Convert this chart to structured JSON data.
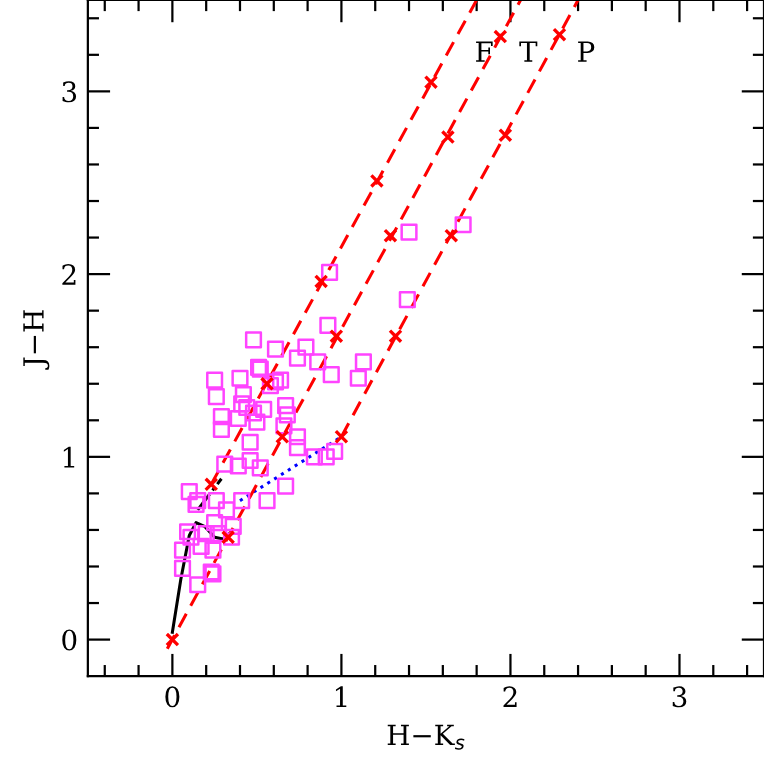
{
  "chart_data": {
    "type": "scatter",
    "xlabel": "H−K$_{s}$",
    "ylabel": "J−H",
    "xlim": [
      -0.5,
      3.5
    ],
    "ylim": [
      -0.2,
      3.5
    ],
    "xticks": [
      {
        "value": -0.4,
        "label": null
      },
      {
        "value": -0.2,
        "label": null
      },
      0,
      {
        "value": 0.2,
        "label": null
      },
      {
        "value": 0.4,
        "label": null
      },
      {
        "value": 0.6,
        "label": null
      },
      {
        "value": 0.8,
        "label": null
      },
      1,
      {
        "value": 1.2,
        "label": null
      },
      {
        "value": 1.4,
        "label": null
      },
      {
        "value": 1.6,
        "label": null
      },
      {
        "value": 1.8,
        "label": null
      },
      2,
      {
        "value": 2.2,
        "label": null
      },
      {
        "value": 2.4,
        "label": null
      },
      {
        "value": 2.6,
        "label": null
      },
      {
        "value": 2.8,
        "label": null
      },
      3,
      {
        "value": 3.2,
        "label": null
      },
      {
        "value": 3.4,
        "label": null
      }
    ],
    "yticks": [
      0,
      {
        "value": 0.2,
        "label": null
      },
      {
        "value": 0.4,
        "label": null
      },
      {
        "value": 0.6,
        "label": null
      },
      {
        "value": 0.8,
        "label": null
      },
      1,
      {
        "value": 1.2,
        "label": null
      },
      {
        "value": 1.4,
        "label": null
      },
      {
        "value": 1.6,
        "label": null
      },
      {
        "value": 1.8,
        "label": null
      },
      2,
      {
        "value": 2.2,
        "label": null
      },
      {
        "value": 2.4,
        "label": null
      },
      {
        "value": 2.6,
        "label": null
      },
      {
        "value": 2.8,
        "label": null
      },
      3,
      {
        "value": 3.2,
        "label": null
      },
      {
        "value": 3.4,
        "label": null
      }
    ],
    "grid": false,
    "legend": false,
    "series": [
      {
        "marker": "square",
        "color": "#ff44ff",
        "x": [
          0.1,
          0.14,
          0.15,
          0.26,
          0.32,
          0.41,
          0.56,
          0.67,
          0.09,
          0.11,
          0.06,
          0.06,
          0.15,
          0.23,
          0.24,
          0.17,
          0.24,
          0.25,
          0.27,
          0.36,
          0.35,
          0.2,
          0.31,
          0.39,
          0.46,
          0.52,
          0.29,
          0.29,
          0.39,
          0.44,
          0.46,
          0.5,
          0.48,
          0.54,
          0.41,
          0.42,
          0.26,
          0.25,
          0.4,
          0.58,
          0.61,
          0.64,
          0.67,
          0.68,
          0.66,
          0.74,
          0.74,
          0.84,
          0.91,
          0.96,
          0.94,
          1.1,
          1.13,
          0.52,
          0.48,
          0.61,
          0.79,
          0.74,
          0.86,
          0.92,
          0.51,
          1.39,
          1.4,
          1.72,
          0.93
        ],
        "values": [
          0.81,
          0.74,
          0.76,
          0.76,
          0.71,
          0.76,
          0.76,
          0.84,
          0.59,
          0.56,
          0.49,
          0.39,
          0.3,
          0.37,
          0.36,
          0.51,
          0.49,
          0.64,
          0.58,
          0.62,
          0.56,
          0.58,
          0.96,
          0.95,
          0.98,
          0.94,
          1.22,
          1.15,
          1.21,
          1.27,
          1.08,
          1.19,
          1.24,
          1.26,
          1.29,
          1.34,
          1.33,
          1.42,
          1.43,
          1.39,
          1.41,
          1.42,
          1.28,
          1.23,
          1.17,
          1.11,
          1.05,
          1.0,
          1.0,
          1.03,
          1.45,
          1.43,
          1.52,
          1.48,
          1.64,
          1.59,
          1.6,
          1.54,
          1.52,
          1.72,
          1.49,
          1.86,
          2.23,
          2.27,
          2.01
        ]
      },
      {
        "type": "line",
        "marker": "none",
        "line_style": "solid",
        "color": "#000000",
        "x": [
          0.0,
          0.05,
          0.1,
          0.14,
          0.19,
          0.25,
          0.3,
          0.35
        ],
        "values": [
          0.04,
          0.33,
          0.57,
          0.64,
          0.62,
          0.56,
          0.55,
          0.59
        ]
      },
      {
        "type": "line",
        "marker": "none",
        "line_style": "dashdot",
        "color": "#000000",
        "x": [
          0.15,
          0.29
        ],
        "values": [
          0.71,
          0.88
        ]
      },
      {
        "type": "line",
        "marker": "none",
        "line_style": "dotted",
        "color": "#0000ff",
        "x": [
          0.4,
          1.0
        ],
        "values": [
          0.76,
          1.11
        ]
      },
      {
        "type": "line",
        "marker": "none",
        "line_style": "dashed",
        "color": "#ff0000",
        "x": [
          0.23,
          1.8
        ],
        "values": [
          0.85,
          3.5
        ]
      },
      {
        "type": "line",
        "marker": "none",
        "line_style": "dashed",
        "color": "#ff0000",
        "x": [
          -0.03,
          2.06
        ],
        "values": [
          -0.05,
          3.5
        ]
      },
      {
        "type": "line",
        "marker": "none",
        "line_style": "dashed",
        "color": "#ff0000",
        "x": [
          1.0,
          2.4
        ],
        "values": [
          1.11,
          3.5
        ]
      },
      {
        "type": "scatter",
        "marker": "cross",
        "color": "#ff0000",
        "x": [
          0.23,
          0.56,
          0.88,
          1.21,
          1.53,
          0,
          0.33,
          0.65,
          0.97,
          1.29,
          1.63,
          1.94,
          1.0,
          1.32,
          1.65,
          1.97,
          2.29
        ],
        "values": [
          0.85,
          1.4,
          1.96,
          2.51,
          3.05,
          0,
          0.56,
          1.11,
          1.66,
          2.21,
          2.75,
          3.3,
          1.11,
          1.66,
          2.21,
          2.76,
          3.31
        ]
      }
    ],
    "annotations": [
      "F",
      "T",
      "P"
    ]
  }
}
